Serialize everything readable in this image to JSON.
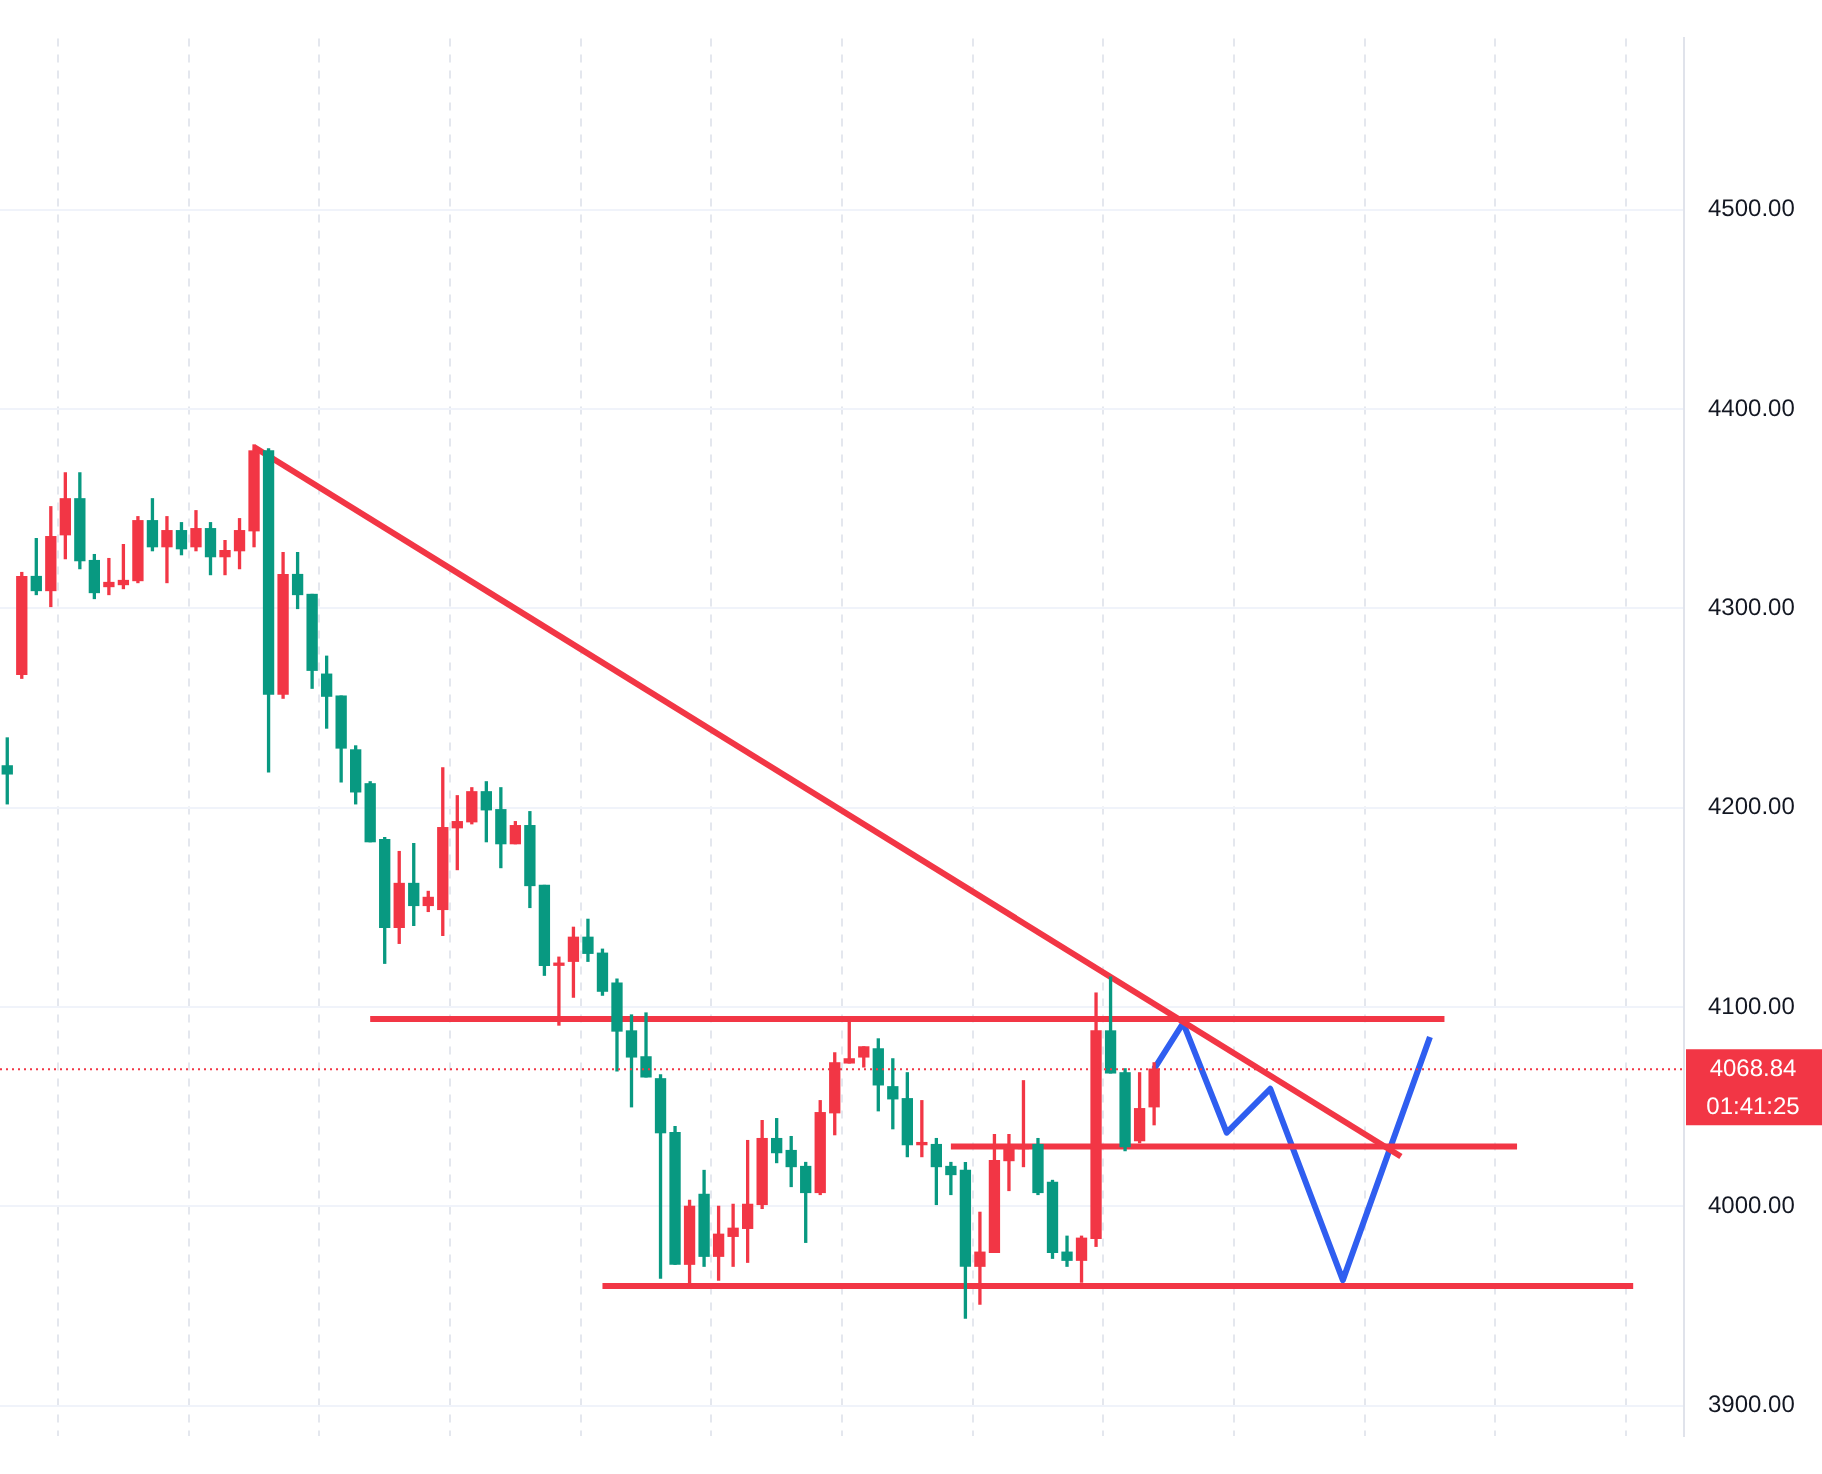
{
  "chart_data": {
    "type": "candlestick",
    "categories": [
      null,
      null,
      null,
      null,
      null,
      null,
      null,
      null,
      null,
      null,
      null,
      null,
      null,
      null,
      null,
      null,
      null,
      null,
      null,
      null,
      null,
      null,
      null,
      null,
      null,
      null,
      null,
      null,
      null,
      null,
      null,
      null,
      null,
      null,
      null,
      null,
      null,
      null,
      null,
      null,
      null,
      null,
      null,
      null,
      null,
      null,
      null,
      null,
      null,
      null,
      null,
      null,
      null,
      null,
      null,
      null,
      null,
      null,
      null,
      null,
      null,
      null,
      null,
      null,
      null,
      null,
      null,
      null,
      null,
      null,
      null,
      null,
      null,
      null,
      null,
      null,
      null,
      null,
      null,
      null,
      null,
      null,
      null,
      null,
      null,
      null,
      null,
      null,
      null,
      null,
      null,
      null,
      null,
      null,
      null,
      null,
      null,
      null,
      null,
      null,
      null,
      null,
      null,
      null,
      null,
      null,
      null,
      null,
      null,
      null,
      null,
      null,
      null,
      null,
      null,
      null
    ],
    "ohlc": [
      [
        4221,
        4235,
        4202,
        4217
      ],
      [
        4267,
        4318,
        4265,
        4316
      ],
      [
        4316,
        4335,
        4307,
        4309
      ],
      [
        4309,
        4351,
        4301,
        4336
      ],
      [
        4337,
        4368,
        4325,
        4355
      ],
      [
        4355,
        4368,
        4320,
        4324
      ],
      [
        4324,
        4327,
        4305,
        4308
      ],
      [
        4311,
        4325,
        4307,
        4313
      ],
      [
        4312,
        4332,
        4310,
        4314
      ],
      [
        4314,
        4346,
        4313,
        4344
      ],
      [
        4344,
        4355,
        4329,
        4331
      ],
      [
        4331,
        4346,
        4313,
        4339
      ],
      [
        4339,
        4343,
        4327,
        4330
      ],
      [
        4331,
        4349,
        4329,
        4340
      ],
      [
        4340,
        4343,
        4317,
        4326
      ],
      [
        4326,
        4334,
        4317,
        4329
      ],
      [
        4329,
        4345,
        4320,
        4339
      ],
      [
        4339,
        4382,
        4331,
        4379
      ],
      [
        4379,
        4380,
        4218,
        4257
      ],
      [
        4257,
        4328,
        4255,
        4317
      ],
      [
        4317,
        4328,
        4300,
        4307
      ],
      [
        4307,
        4307,
        4260,
        4269
      ],
      [
        4267,
        4276,
        4240,
        4256
      ],
      [
        4256,
        4256,
        4213,
        4230
      ],
      [
        4229,
        4231,
        4202,
        4208
      ],
      [
        4212,
        4213,
        4183,
        4183
      ],
      [
        4184,
        4185,
        4122,
        4140
      ],
      [
        4140,
        4178,
        4132,
        4162
      ],
      [
        4162,
        4182,
        4141,
        4151
      ],
      [
        4151,
        4158,
        4148,
        4155
      ],
      [
        4149,
        4220,
        4136,
        4190
      ],
      [
        4190,
        4206,
        4169,
        4193
      ],
      [
        4193,
        4210,
        4192,
        4208
      ],
      [
        4208,
        4213,
        4183,
        4199
      ],
      [
        4199,
        4210,
        4170,
        4182
      ],
      [
        4182,
        4193,
        4182,
        4191
      ],
      [
        4191,
        4198,
        4150,
        4161
      ],
      [
        4161,
        4161,
        4116,
        4121
      ],
      [
        4121,
        4125,
        4091,
        4122
      ],
      [
        4123,
        4140,
        4105,
        4135
      ],
      [
        4135,
        4144,
        4123,
        4127
      ],
      [
        4127,
        4129,
        4106,
        4108
      ],
      [
        4112,
        4114,
        4068,
        4088
      ],
      [
        4088,
        4096,
        4050,
        4075
      ],
      [
        4075,
        4097,
        4065,
        4065
      ],
      [
        4064,
        4066,
        3964,
        4037
      ],
      [
        4037,
        4040,
        3971,
        3971
      ],
      [
        3971,
        4003,
        3960,
        4000
      ],
      [
        4006,
        4018,
        3970,
        3975
      ],
      [
        3975,
        4000,
        3963,
        3986
      ],
      [
        3985,
        4001,
        3970,
        3989
      ],
      [
        3989,
        4033,
        3972,
        4001
      ],
      [
        4001,
        4043,
        3999,
        4034
      ],
      [
        4034,
        4044,
        4022,
        4027
      ],
      [
        4028,
        4035,
        4010,
        4020
      ],
      [
        4020,
        4022,
        3982,
        4007
      ],
      [
        4007,
        4053,
        4006,
        4047
      ],
      [
        4047,
        4077,
        4036,
        4072
      ],
      [
        4072,
        4094,
        4072,
        4074
      ],
      [
        4075,
        4080,
        4070,
        4080
      ],
      [
        4079,
        4084,
        4048,
        4061
      ],
      [
        4060,
        4074,
        4039,
        4054
      ],
      [
        4054,
        4067,
        4025,
        4031
      ],
      [
        4031,
        4053,
        4025,
        4032
      ],
      [
        4031,
        4034,
        4001,
        4020
      ],
      [
        4020,
        4022,
        4006,
        4016
      ],
      [
        4018,
        4022,
        3944,
        3970
      ],
      [
        3970,
        3997,
        3951,
        3977
      ],
      [
        3977,
        4036,
        3977,
        4023
      ],
      [
        4023,
        4036,
        4008,
        4029
      ],
      [
        4029,
        4063,
        4020,
        4030
      ],
      [
        4031,
        4034,
        4006,
        4007
      ],
      [
        4012,
        4013,
        3974,
        3977
      ],
      [
        3977,
        3985,
        3970,
        3973
      ],
      [
        3973,
        3985,
        3962,
        3984
      ],
      [
        3984,
        4107,
        3980,
        4088
      ],
      [
        4088,
        4115,
        4067,
        4067
      ],
      [
        4067,
        4069,
        4028,
        4030
      ],
      [
        4033,
        4067,
        4032,
        4049
      ],
      [
        4050,
        4072,
        4041,
        4068.84
      ],
      null,
      null,
      null,
      null,
      null,
      null,
      null,
      null,
      null,
      null,
      null,
      null,
      null,
      null,
      null,
      null,
      null,
      null,
      null,
      null,
      null,
      null,
      null,
      null,
      null,
      null,
      null,
      null,
      null,
      null,
      null,
      null,
      null,
      null,
      null,
      null
    ],
    "colors": [
      "#089981",
      "#f23645",
      "#089981",
      "#f23645",
      "#f23645",
      "#089981",
      "#089981",
      "#f23645",
      "#f23645",
      "#f23645",
      "#089981",
      "#f23645",
      "#089981",
      "#f23645",
      "#089981",
      "#f23645",
      "#f23645",
      "#f23645",
      "#089981",
      "#f23645",
      "#089981",
      "#089981",
      "#089981",
      "#089981",
      "#089981",
      "#089981",
      "#089981",
      "#f23645",
      "#089981",
      "#f23645",
      "#f23645",
      "#f23645",
      "#f23645",
      "#089981",
      "#089981",
      "#f23645",
      "#089981",
      "#089981",
      "#f23645",
      "#f23645",
      "#089981",
      "#089981",
      "#089981",
      "#089981",
      "#089981",
      "#089981",
      "#089981",
      "#f23645",
      "#089981",
      "#f23645",
      "#f23645",
      "#f23645",
      "#f23645",
      "#089981",
      "#089981",
      "#089981",
      "#f23645",
      "#f23645",
      "#f23645",
      "#f23645",
      "#089981",
      "#089981",
      "#089981",
      "#f23645",
      "#089981",
      "#089981",
      "#089981",
      "#f23645",
      "#f23645",
      "#f23645",
      "#f23645",
      "#089981",
      "#089981",
      "#089981",
      "#f23645",
      "#f23645",
      "#089981",
      "#089981",
      "#f23645",
      "#f23645",
      null,
      null,
      null,
      null,
      null,
      null,
      null,
      null,
      null,
      null,
      null,
      null,
      null,
      null,
      null,
      null,
      null,
      null,
      null,
      null,
      null,
      null,
      null,
      null,
      null,
      null,
      null,
      null,
      null,
      null,
      null,
      null,
      null,
      null,
      null,
      null
    ],
    "series": [
      {
        "type": "line",
        "color": "#f23645",
        "values": [
          null,
          null,
          null,
          null,
          null,
          null,
          null,
          null,
          null,
          null,
          null,
          null,
          null,
          null,
          null,
          null,
          null,
          4381,
          null,
          null,
          null,
          null,
          null,
          null,
          null,
          null,
          null,
          null,
          null,
          null,
          null,
          null,
          null,
          null,
          null,
          null,
          null,
          null,
          null,
          null,
          null,
          null,
          null,
          null,
          null,
          null,
          null,
          null,
          null,
          null,
          null,
          null,
          null,
          null,
          null,
          null,
          null,
          null,
          null,
          null,
          null,
          null,
          null,
          null,
          null,
          null,
          null,
          null,
          null,
          null,
          null,
          null,
          null,
          null,
          null,
          null,
          null,
          null,
          null,
          null,
          null,
          null,
          null,
          null,
          null,
          null,
          null,
          null,
          null,
          null,
          null,
          null,
          null,
          null,
          null,
          null,
          4025,
          null,
          null,
          null,
          null,
          null,
          null,
          null,
          null,
          null,
          null,
          null,
          null,
          null,
          null,
          null,
          null,
          null,
          null,
          null
        ]
      },
      {
        "type": "line",
        "color": "#f23645",
        "values": [
          null,
          null,
          null,
          null,
          null,
          null,
          null,
          null,
          null,
          null,
          null,
          null,
          null,
          null,
          null,
          null,
          null,
          null,
          null,
          null,
          null,
          null,
          null,
          null,
          null,
          4094,
          null,
          null,
          null,
          null,
          null,
          null,
          null,
          null,
          null,
          null,
          null,
          null,
          null,
          null,
          null,
          null,
          null,
          null,
          null,
          null,
          null,
          null,
          null,
          null,
          null,
          null,
          null,
          null,
          null,
          null,
          null,
          null,
          null,
          null,
          null,
          null,
          null,
          null,
          null,
          null,
          null,
          null,
          null,
          null,
          null,
          null,
          null,
          null,
          null,
          null,
          null,
          null,
          null,
          null,
          null,
          null,
          null,
          null,
          null,
          null,
          null,
          null,
          null,
          null,
          null,
          null,
          null,
          null,
          null,
          null,
          null,
          null,
          null,
          4094,
          null,
          null,
          null,
          null,
          null,
          null,
          null,
          null,
          null,
          null,
          null,
          null,
          null,
          null,
          null,
          null
        ]
      },
      {
        "type": "line",
        "color": "#f23645",
        "values": [
          null,
          null,
          null,
          null,
          null,
          null,
          null,
          null,
          null,
          null,
          null,
          null,
          null,
          null,
          null,
          null,
          null,
          null,
          null,
          null,
          null,
          null,
          null,
          null,
          null,
          null,
          null,
          null,
          null,
          null,
          null,
          null,
          null,
          null,
          null,
          null,
          null,
          null,
          null,
          null,
          null,
          null,
          null,
          null,
          null,
          null,
          null,
          null,
          null,
          null,
          null,
          null,
          null,
          null,
          null,
          null,
          null,
          null,
          null,
          null,
          null,
          null,
          null,
          null,
          null,
          4030,
          null,
          null,
          null,
          null,
          null,
          null,
          null,
          null,
          null,
          null,
          null,
          null,
          null,
          null,
          null,
          null,
          null,
          null,
          null,
          null,
          null,
          null,
          null,
          null,
          null,
          null,
          null,
          null,
          null,
          null,
          null,
          null,
          null,
          null,
          null,
          null,
          null,
          null,
          4030,
          null,
          null,
          null,
          null,
          null,
          null,
          null,
          null,
          null,
          null,
          null
        ]
      },
      {
        "type": "line",
        "color": "#f23645",
        "values": [
          null,
          null,
          null,
          null,
          null,
          null,
          null,
          null,
          null,
          null,
          null,
          null,
          null,
          null,
          null,
          null,
          null,
          null,
          null,
          null,
          null,
          null,
          null,
          null,
          null,
          null,
          null,
          null,
          null,
          null,
          null,
          null,
          null,
          null,
          null,
          null,
          null,
          null,
          null,
          null,
          null,
          3960,
          null,
          null,
          null,
          null,
          null,
          null,
          null,
          null,
          null,
          null,
          null,
          null,
          null,
          null,
          null,
          null,
          null,
          null,
          null,
          null,
          null,
          null,
          null,
          null,
          null,
          null,
          null,
          null,
          null,
          null,
          null,
          null,
          null,
          null,
          null,
          null,
          null,
          null,
          null,
          null,
          null,
          null,
          null,
          null,
          null,
          null,
          null,
          null,
          null,
          null,
          null,
          null,
          null,
          null,
          null,
          null,
          null,
          null,
          null,
          null,
          null,
          null,
          null,
          null,
          null,
          null,
          null,
          null,
          null,
          null,
          3960,
          null,
          null,
          null
        ]
      },
      {
        "type": "line",
        "color": "#2f5ef0",
        "values": [
          null,
          null,
          null,
          null,
          null,
          null,
          null,
          null,
          null,
          null,
          null,
          null,
          null,
          null,
          null,
          null,
          null,
          null,
          null,
          null,
          null,
          null,
          null,
          null,
          null,
          null,
          null,
          null,
          null,
          null,
          null,
          null,
          null,
          null,
          null,
          null,
          null,
          null,
          null,
          null,
          null,
          null,
          null,
          null,
          null,
          null,
          null,
          null,
          null,
          null,
          null,
          null,
          null,
          null,
          null,
          null,
          null,
          null,
          null,
          null,
          null,
          null,
          null,
          null,
          null,
          null,
          null,
          null,
          null,
          null,
          null,
          null,
          null,
          null,
          null,
          null,
          null,
          null,
          null,
          4069,
          null,
          4092,
          null,
          null,
          4037,
          null,
          null,
          4059,
          null,
          null,
          null,
          null,
          3963,
          null,
          null,
          null,
          null,
          null,
          4085,
          null,
          null,
          null,
          null,
          null,
          null,
          null,
          null,
          null,
          null,
          null,
          null,
          null,
          null,
          null,
          null,
          null
        ]
      }
    ],
    "ylim": [
      3885,
      4586
    ],
    "yticks": [
      {
        "value": 3900,
        "label": "3900.00"
      },
      {
        "value": 4000,
        "label": "4000.00"
      },
      {
        "value": 4100,
        "label": "4100.00"
      },
      {
        "value": 4200,
        "label": "4200.00"
      },
      {
        "value": 4300,
        "label": "4300.00"
      },
      {
        "value": 4400,
        "label": "4400.00"
      },
      {
        "value": 4500,
        "label": "4500.00"
      }
    ],
    "grid": true,
    "tick_labels": "y",
    "ref_lines": [
      {
        "axis": "y",
        "value": 4068.84,
        "label": "4068.84",
        "color": "#f23645",
        "line_style": "dotted"
      }
    ],
    "annotations": [
      "01:41:25"
    ]
  }
}
